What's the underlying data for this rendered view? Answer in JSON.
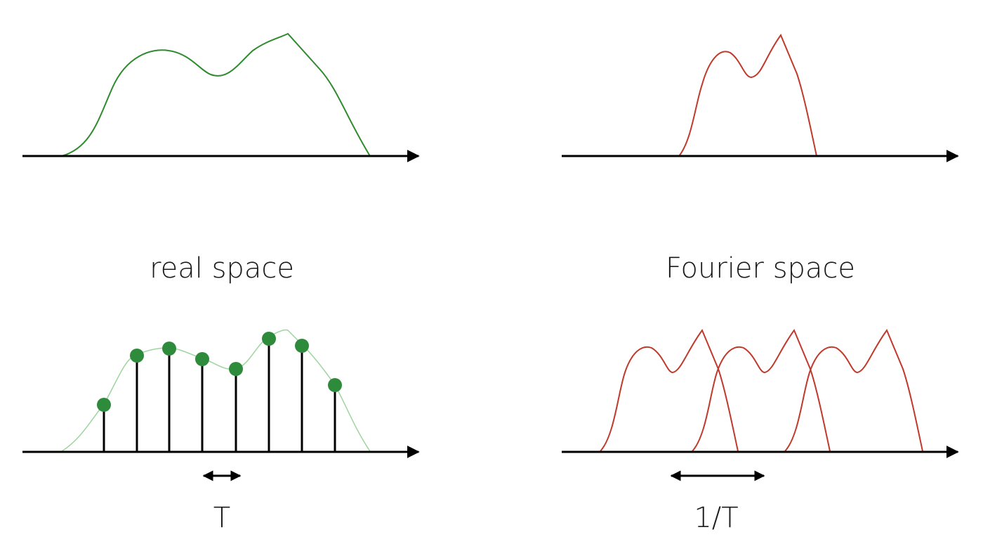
{
  "labels": {
    "real_space": "real space",
    "fourier_space": "Fourier space",
    "sampling_period": "T",
    "replica_spacing": "1/T"
  },
  "colors": {
    "real_signal": "#2e8b2e",
    "real_signal_faint": "#9fd49f",
    "sample_dot": "#2e8b3c",
    "spectrum": "#c0392b",
    "axis": "#000000"
  }
}
